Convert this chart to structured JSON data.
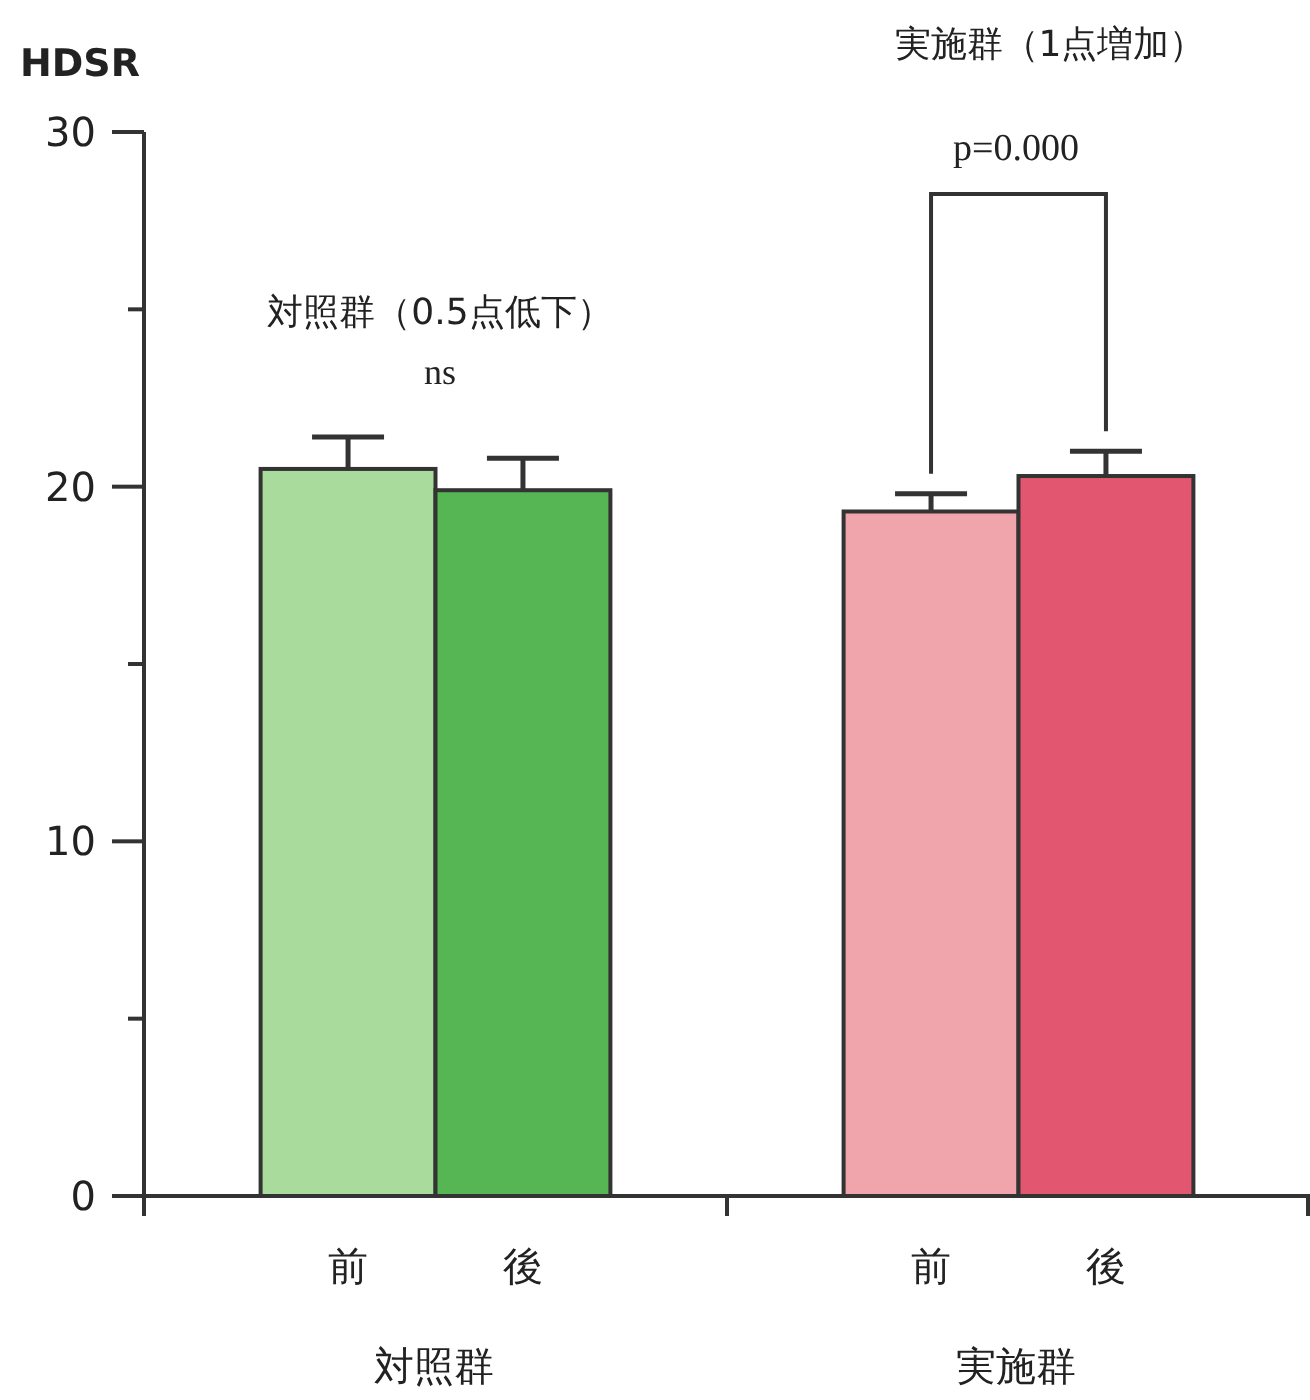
{
  "chart_data": {
    "type": "bar",
    "ylabel": "HDSR",
    "categories": [
      "前",
      "後",
      "前",
      "後"
    ],
    "values": [
      20.5,
      19.9,
      19.3,
      20.3
    ],
    "errors": [
      [
        20.5,
        21.4
      ],
      [
        19.9,
        20.8
      ],
      [
        19.3,
        19.8
      ],
      [
        20.3,
        21.0
      ]
    ],
    "colors": [
      "#a9dc9c",
      "#55b653",
      "#f0a4ab",
      "#e2566f"
    ],
    "ylim": [
      0,
      30
    ],
    "yticks": [
      0,
      {
        "value": 5,
        "label": null
      },
      10,
      {
        "value": 15,
        "label": null
      },
      20,
      {
        "value": 25,
        "label": null
      },
      30
    ],
    "annotations": [
      "対照群（0.5点低下）",
      "ns",
      "実施群（1点増加）",
      "p=0.000",
      "対照群",
      "実施群"
    ]
  }
}
